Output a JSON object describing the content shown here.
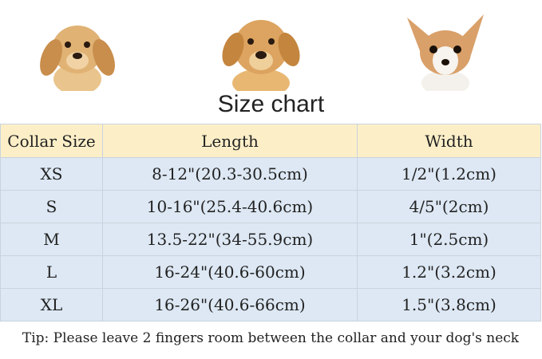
{
  "title": "Size chart",
  "columns": [
    "Collar Size",
    "Length",
    "Width"
  ],
  "rows": [
    {
      "size": "XS",
      "length": "8-12\"(20.3-30.5cm)",
      "width": "1/2\"(1.2cm)"
    },
    {
      "size": "S",
      "length": "10-16\"(25.4-40.6cm)",
      "width": "4/5\"(2cm)"
    },
    {
      "size": "M",
      "length": "13.5-22\"(34-55.9cm)",
      "width": "1\"(2.5cm)"
    },
    {
      "size": "L",
      "length": "16-24\"(40.6-60cm)",
      "width": "1.2\"(3.2cm)"
    },
    {
      "size": "XL",
      "length": "16-26\"(40.6-66cm)",
      "width": "1.5\"(3.8cm)"
    }
  ],
  "tip": "Tip: Please leave 2 fingers room between the collar and your dog's neck",
  "colors": {
    "header_bg": "#fcefc8",
    "row_bg": "#dde8f4"
  }
}
